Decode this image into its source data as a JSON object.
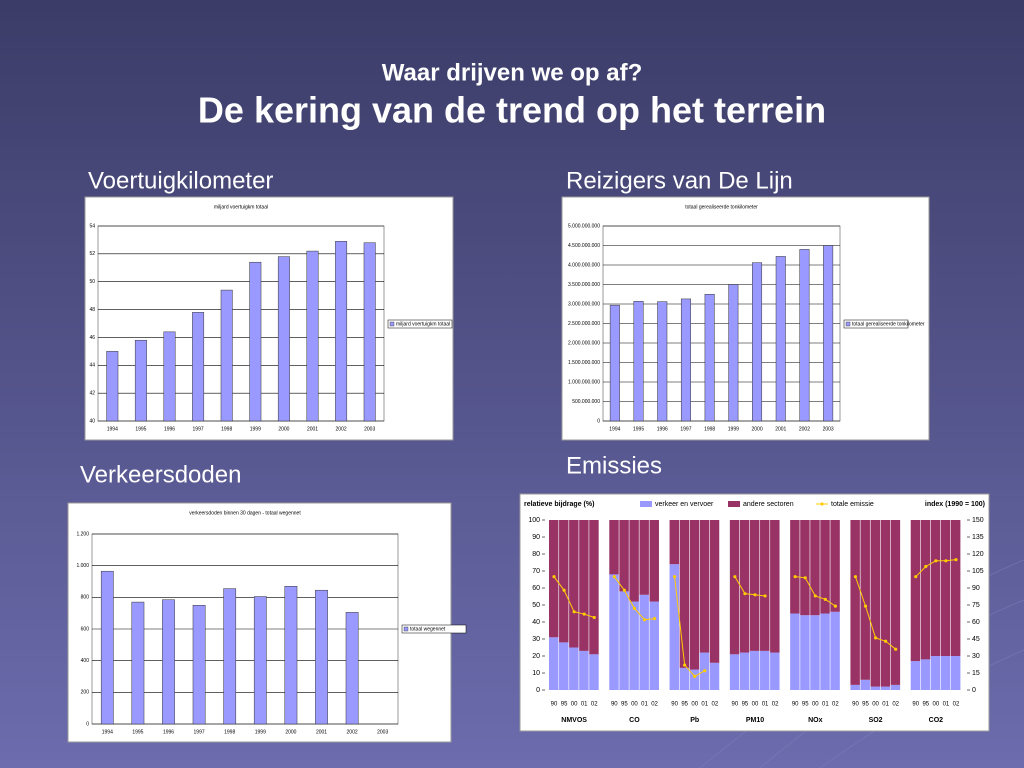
{
  "slide": {
    "title": "Waar drijven we op af?",
    "subtitle": "De kering van de trend op het terrein"
  },
  "chart_data": [
    {
      "type": "bar",
      "caption": "Voertuigkilometer",
      "title": "miljard voertuigkm totaal",
      "categories": [
        "1994",
        "1995",
        "1996",
        "1997",
        "1998",
        "1999",
        "2000",
        "2001",
        "2002",
        "2003"
      ],
      "series": [
        {
          "name": "miljard voertuigkm totaal",
          "color": "#9999ff",
          "values": [
            45.0,
            45.8,
            46.4,
            47.8,
            49.4,
            51.4,
            51.8,
            52.2,
            52.9,
            52.8
          ]
        }
      ],
      "ylim": [
        40,
        54
      ],
      "yticks": [
        40,
        42,
        44,
        46,
        48,
        50,
        52,
        54
      ],
      "grid": true,
      "legend": "right"
    },
    {
      "type": "bar",
      "caption": "Reizigers van De Lijn",
      "title": "totaal gerealiseerde tonkilometer",
      "categories": [
        "1994",
        "1995",
        "1996",
        "1997",
        "1998",
        "1999",
        "2000",
        "2001",
        "2002",
        "2003"
      ],
      "series": [
        {
          "name": "totaal gerealiseerde tonkilometer",
          "color": "#9999ff",
          "values": [
            2970000000,
            3070000000,
            3060000000,
            3130000000,
            3250000000,
            3500000000,
            4060000000,
            4220000000,
            4400000000,
            4500000000
          ]
        }
      ],
      "ylim": [
        0,
        5000000000
      ],
      "yticks": [
        0,
        {
          "value": 500000000,
          "label": "500.000.000"
        },
        {
          "value": 1000000000,
          "label": "1.000.000.000"
        },
        {
          "value": 1500000000,
          "label": "1.500.000.000"
        },
        {
          "value": 2000000000,
          "label": "2.000.000.000"
        },
        {
          "value": 2500000000,
          "label": "2.500.000.000"
        },
        {
          "value": 3000000000,
          "label": "3.000.000.000"
        },
        {
          "value": 3500000000,
          "label": "3.500.000.000"
        },
        {
          "value": 4000000000,
          "label": "4.000.000.000"
        },
        {
          "value": 4500000000,
          "label": "4.500.000.000"
        },
        {
          "value": 5000000000,
          "label": "5.000.000.000"
        }
      ],
      "grid": true,
      "legend": "right"
    },
    {
      "type": "bar",
      "caption": "Verkeersdoden",
      "title": "verkeersdoden binnen 30 dagen - totaal wegennet",
      "categories": [
        "1994",
        "1995",
        "1996",
        "1997",
        "1998",
        "1999",
        "2000",
        "2001",
        "2002",
        "2003"
      ],
      "series": [
        {
          "name": "totaal wegennet",
          "color": "#9999ff",
          "values": [
            965,
            770,
            785,
            750,
            855,
            805,
            870,
            845,
            705,
            null
          ]
        }
      ],
      "ylim": [
        0,
        1200
      ],
      "yticks": [
        0,
        200,
        400,
        600,
        800,
        {
          "value": 1000,
          "label": "1.000"
        },
        {
          "value": 1200,
          "label": "1.200"
        }
      ],
      "grid": true,
      "legend": "right"
    },
    {
      "type": "stacked-bar",
      "caption": "Emissies",
      "ylabel": "relatieve bijdrage (%)",
      "y2label": "index (1990 = 100)",
      "groups": [
        "NMVOS",
        "CO",
        "Pb",
        "PM10",
        "NOx",
        "SO2",
        "CO2"
      ],
      "categories": [
        "90",
        "95",
        "00",
        "01",
        "02"
      ],
      "series": [
        {
          "name": "verkeer en vervoer",
          "color": "#9999ff",
          "values": [
            [
              31,
              28,
              25,
              23,
              21
            ],
            [
              68,
              58,
              52,
              56,
              52
            ],
            [
              74,
              13,
              12,
              22,
              16
            ],
            [
              21,
              22,
              23,
              23,
              22
            ],
            [
              45,
              44,
              44,
              45,
              46
            ],
            [
              3,
              6,
              2,
              2,
              3
            ],
            [
              17,
              18,
              20,
              20,
              20
            ]
          ]
        },
        {
          "name": "andere sectoren",
          "color": "#993366",
          "values": [
            [
              69,
              72,
              75,
              77,
              79
            ],
            [
              32,
              42,
              48,
              44,
              48
            ],
            [
              26,
              87,
              88,
              78,
              84
            ],
            [
              79,
              78,
              77,
              77,
              78
            ],
            [
              55,
              56,
              56,
              55,
              54
            ],
            [
              97,
              94,
              98,
              98,
              97
            ],
            [
              83,
              82,
              80,
              80,
              80
            ]
          ]
        },
        {
          "name": "totale emissie",
          "color": "#ffcc00",
          "axis": "y2",
          "values": [
            [
              100,
              88,
              69,
              67,
              64
            ],
            [
              100,
              88,
              72,
              62,
              63
            ],
            [
              100,
              22,
              12,
              17,
              null
            ],
            [
              100,
              85,
              84,
              83,
              null
            ],
            [
              100,
              99,
              83,
              80,
              74
            ],
            [
              100,
              74,
              46,
              43,
              36
            ],
            [
              100,
              109,
              114,
              114,
              115
            ]
          ]
        }
      ],
      "ylim": [
        0,
        100
      ],
      "yticks": [
        0,
        10,
        20,
        30,
        40,
        50,
        60,
        70,
        80,
        90,
        100
      ],
      "y2lim": [
        0,
        150
      ],
      "y2ticks": [
        0,
        15,
        30,
        45,
        60,
        75,
        90,
        105,
        120,
        135,
        150
      ],
      "legend": "top"
    }
  ]
}
